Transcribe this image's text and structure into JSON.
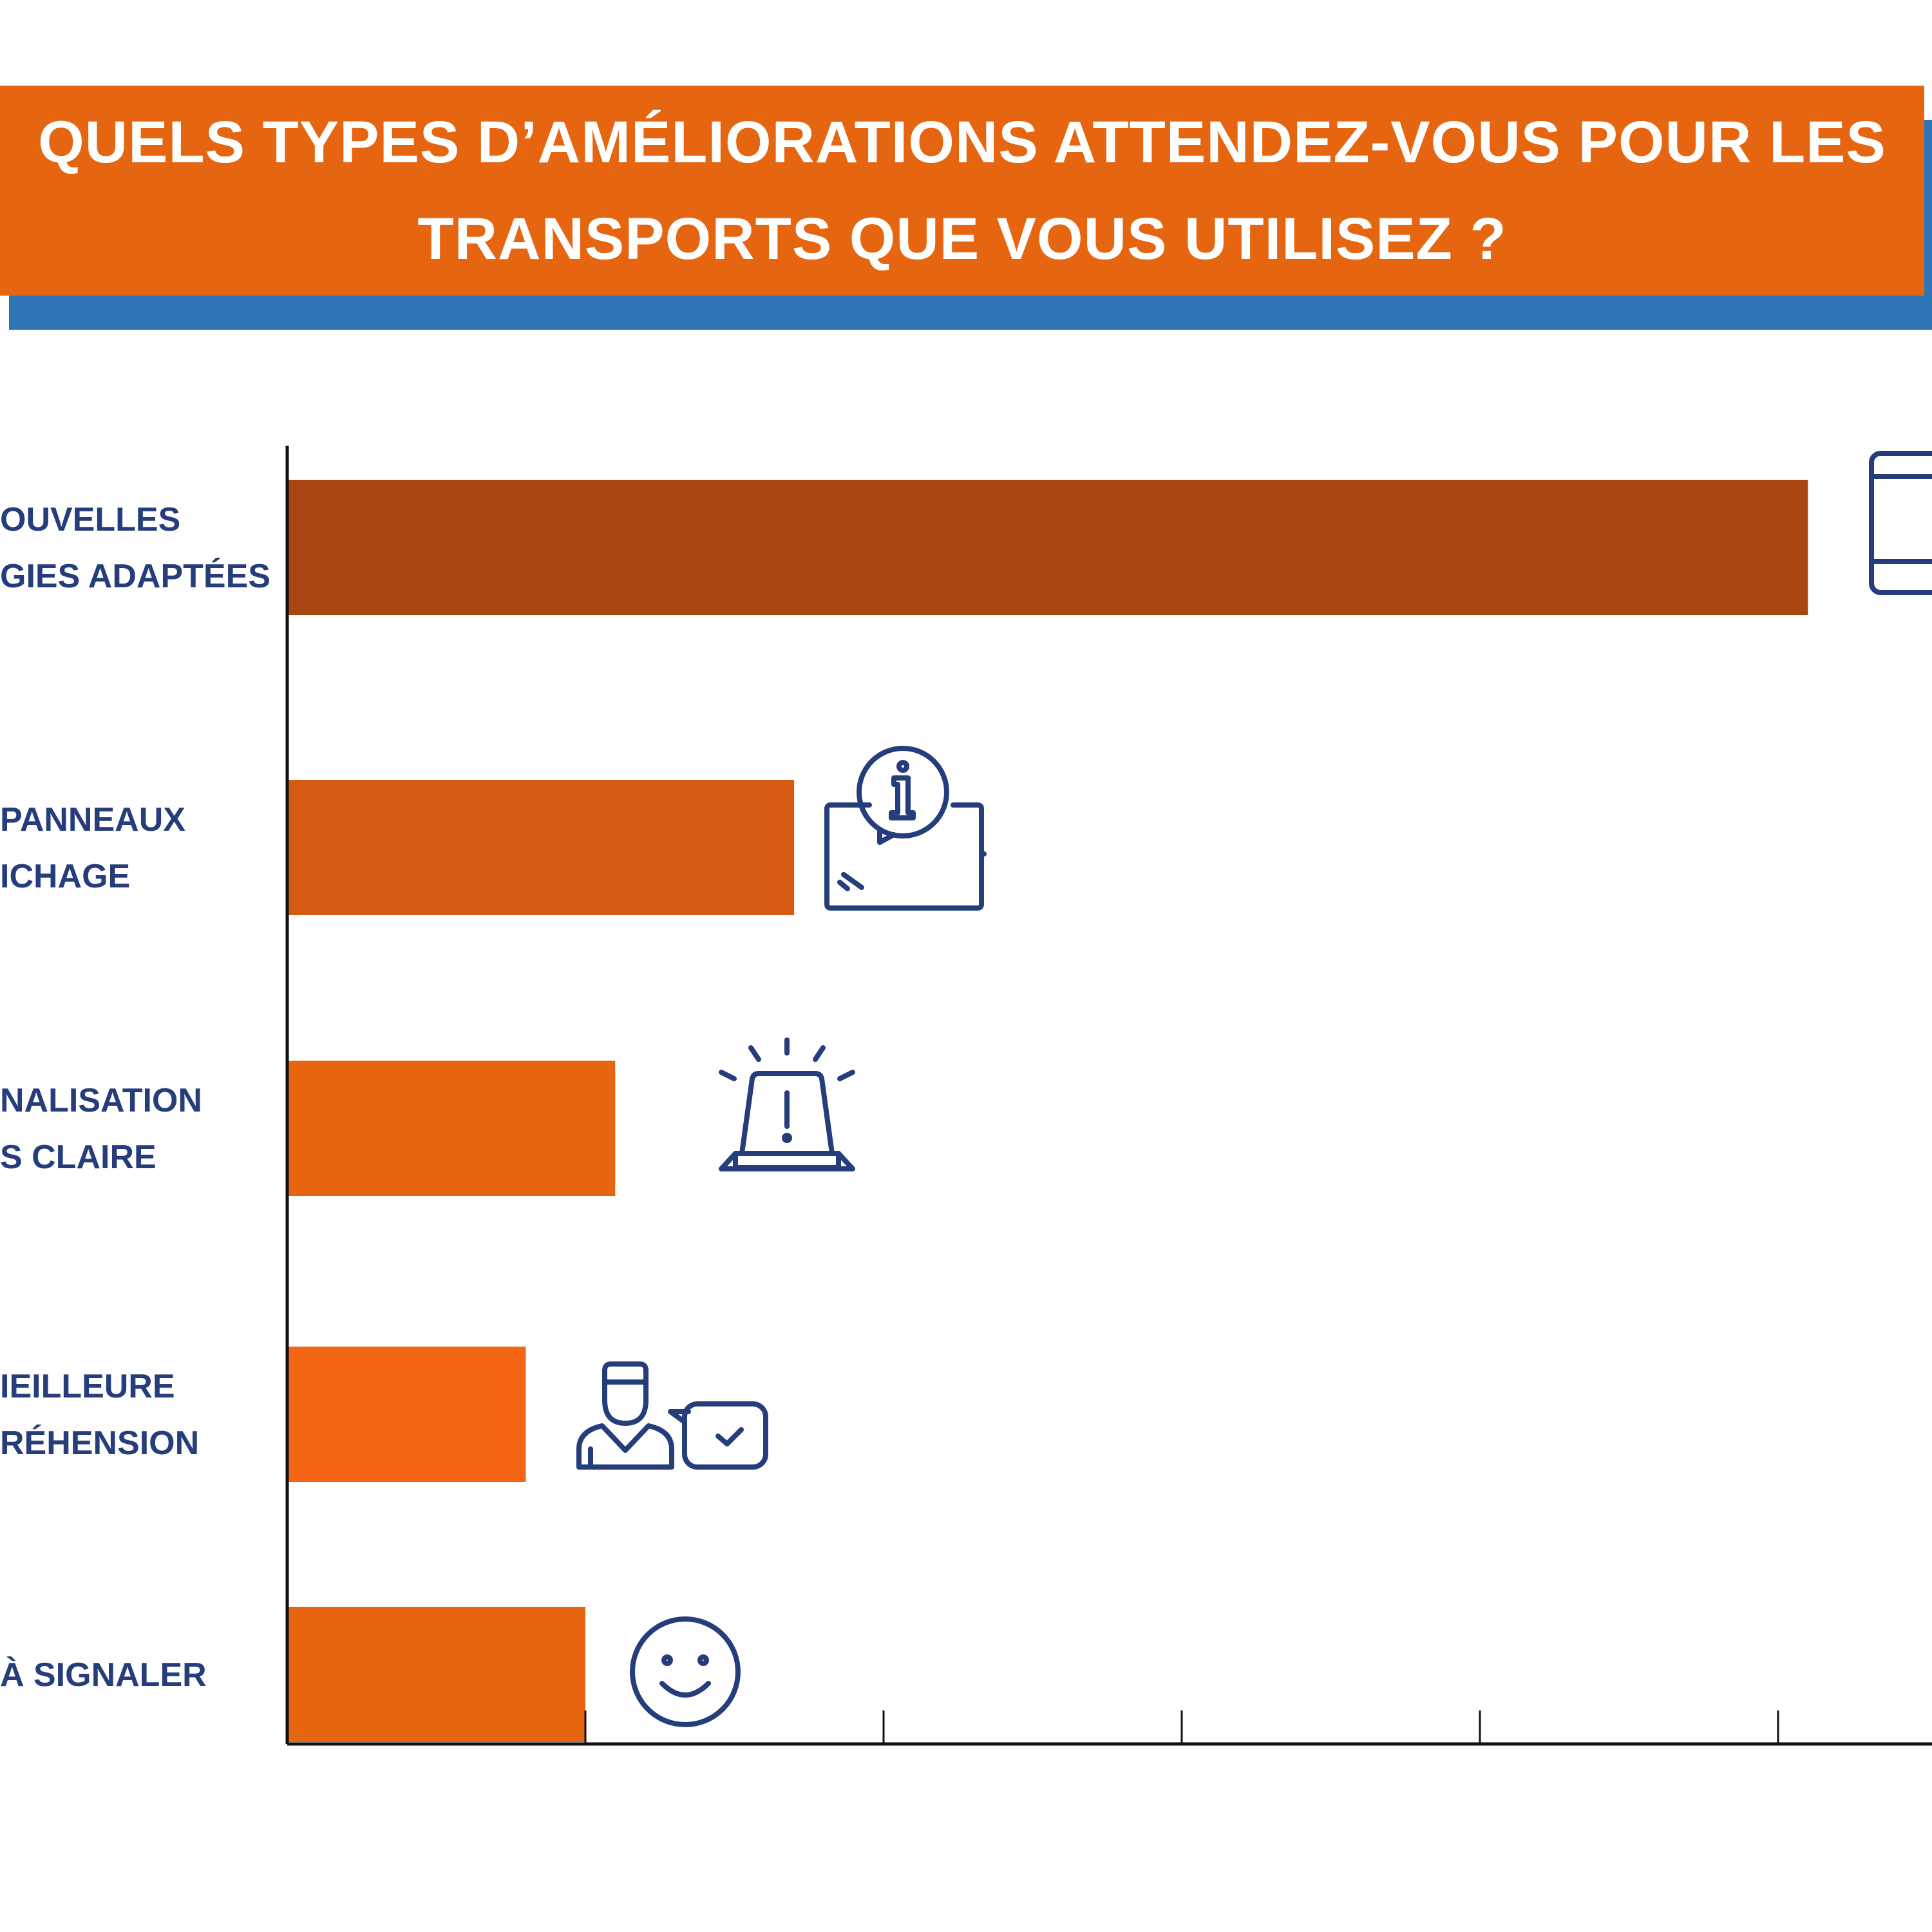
{
  "header": {
    "title_line1": "QUELS TYPES D’AMÉLIORATIONS ATTENDEZ-VOUS POUR LES",
    "title_line2": "TRANSPORTS QUE VOUS UTILISEZ ?"
  },
  "colors": {
    "banner": "#e66511",
    "banner_shadow": "#2e75b6",
    "label_text": "#263d7c",
    "icon": "#263d7c",
    "axis": "#111111"
  },
  "chart_data": {
    "type": "bar",
    "orientation": "horizontal",
    "categories": [
      [
        "OUVELLES",
        "GIES ADAPTÉES"
      ],
      [
        "PANNEAUX",
        "ICHAGE"
      ],
      [
        "NALISATION",
        "S CLAIRE"
      ],
      [
        "IEILLEURE",
        "RÉHENSION"
      ],
      [
        "À SIGNALER"
      ]
    ],
    "values": [
      51,
      17,
      11,
      8,
      10
    ],
    "bar_colors": [
      "#a84511",
      "#d55a14",
      "#e66511",
      "#f46515",
      "#e66511"
    ],
    "icons": [
      "tablet-icon",
      "info-sign-icon",
      "alert-beacon-icon",
      "agent-chat-icon",
      "smiley-icon"
    ],
    "xlim": [
      0,
      60
    ],
    "x_tick_step": 10,
    "x_tick_labels": false,
    "grid": false,
    "legend": "none"
  }
}
